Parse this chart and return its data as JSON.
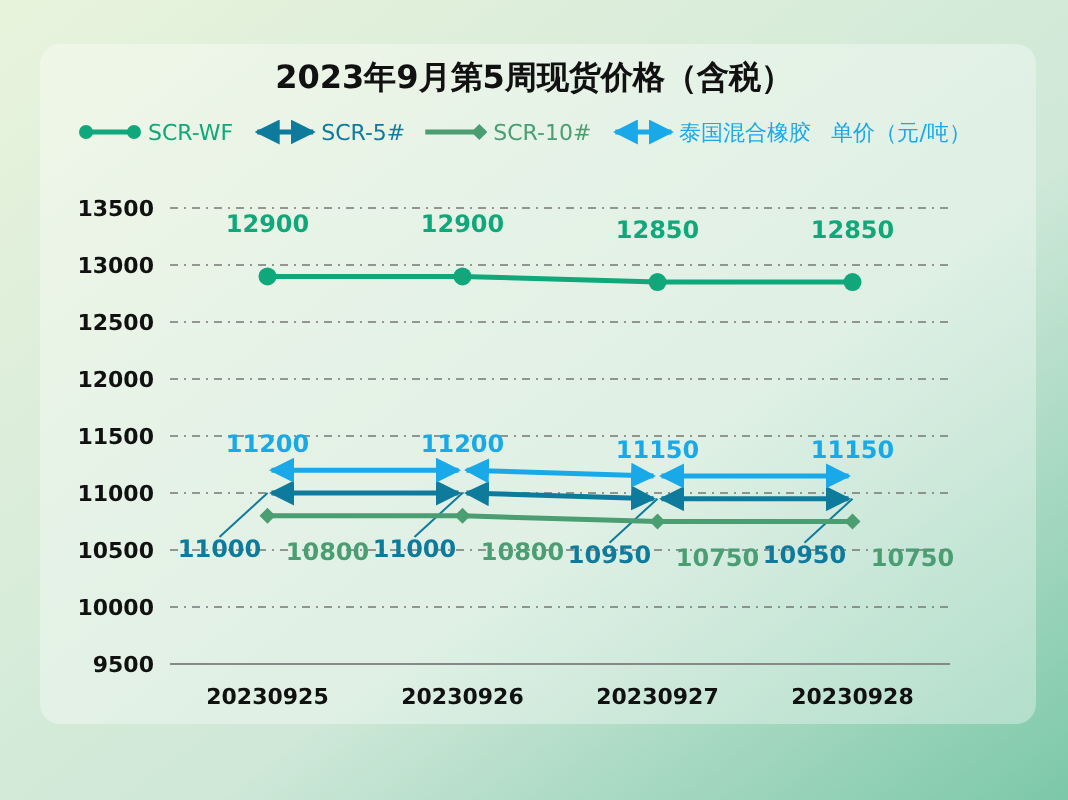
{
  "chart_data": {
    "type": "line",
    "title": "2023年9月第5周现货价格（含税）",
    "ylabel": "单价（元/吨）",
    "categories": [
      "20230925",
      "20230926",
      "20230927",
      "20230928"
    ],
    "series": [
      {
        "name": "SCR-WF",
        "color": "#10a87a",
        "marker": "circle",
        "values": [
          12900,
          12900,
          12850,
          12850
        ]
      },
      {
        "name": "SCR-5#",
        "color": "#0e7a9c",
        "marker": "none",
        "values": [
          11000,
          11000,
          10950,
          10950
        ]
      },
      {
        "name": "SCR-10#",
        "color": "#4a9e72",
        "marker": "diamond",
        "values": [
          10800,
          10800,
          10750,
          10750
        ]
      },
      {
        "name": "泰国混合橡胶",
        "color": "#1aa9e8",
        "marker": "none",
        "values": [
          11200,
          11200,
          11150,
          11150
        ]
      }
    ],
    "ylim": [
      9500,
      13500
    ],
    "yticks": [
      9500,
      10000,
      10500,
      11000,
      11500,
      12000,
      12500,
      13000,
      13500
    ],
    "grid": "y",
    "legend": "top",
    "data_labels": true
  }
}
